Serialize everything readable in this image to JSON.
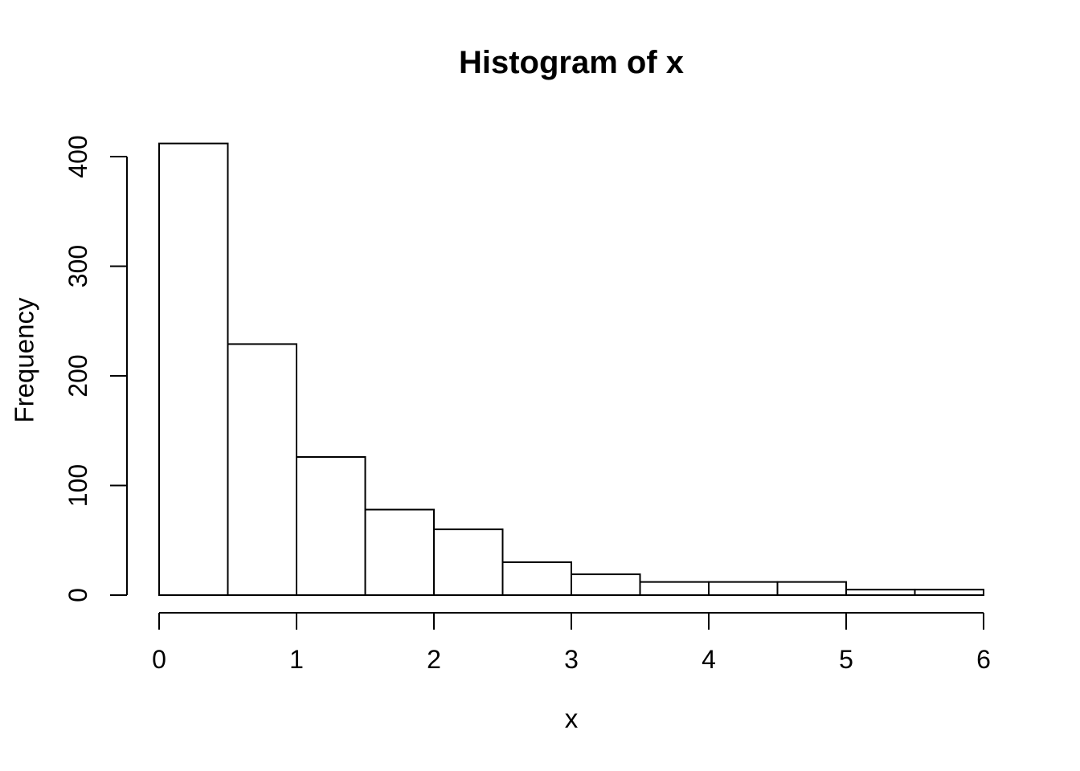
{
  "page": {
    "background": "#ffffff"
  },
  "chart_data": {
    "type": "bar",
    "subtype": "histogram",
    "title": "Histogram of x",
    "xlabel": "x",
    "ylabel": "Frequency",
    "bin_edges": [
      0,
      0.5,
      1,
      1.5,
      2,
      2.5,
      3,
      3.5,
      4,
      4.5,
      5,
      5.5,
      6
    ],
    "frequencies": [
      412,
      229,
      126,
      78,
      60,
      30,
      19,
      12,
      12,
      12,
      5,
      5
    ],
    "x_ticks": [
      0,
      1,
      2,
      3,
      4,
      5,
      6
    ],
    "y_ticks": [
      0,
      100,
      200,
      300,
      400
    ],
    "xlim": [
      0,
      6
    ],
    "ylim": [
      0,
      400
    ],
    "grid": false,
    "legend": "none",
    "bar_fill": "#ffffff",
    "stroke_color": "#000000",
    "background": "#ffffff"
  }
}
